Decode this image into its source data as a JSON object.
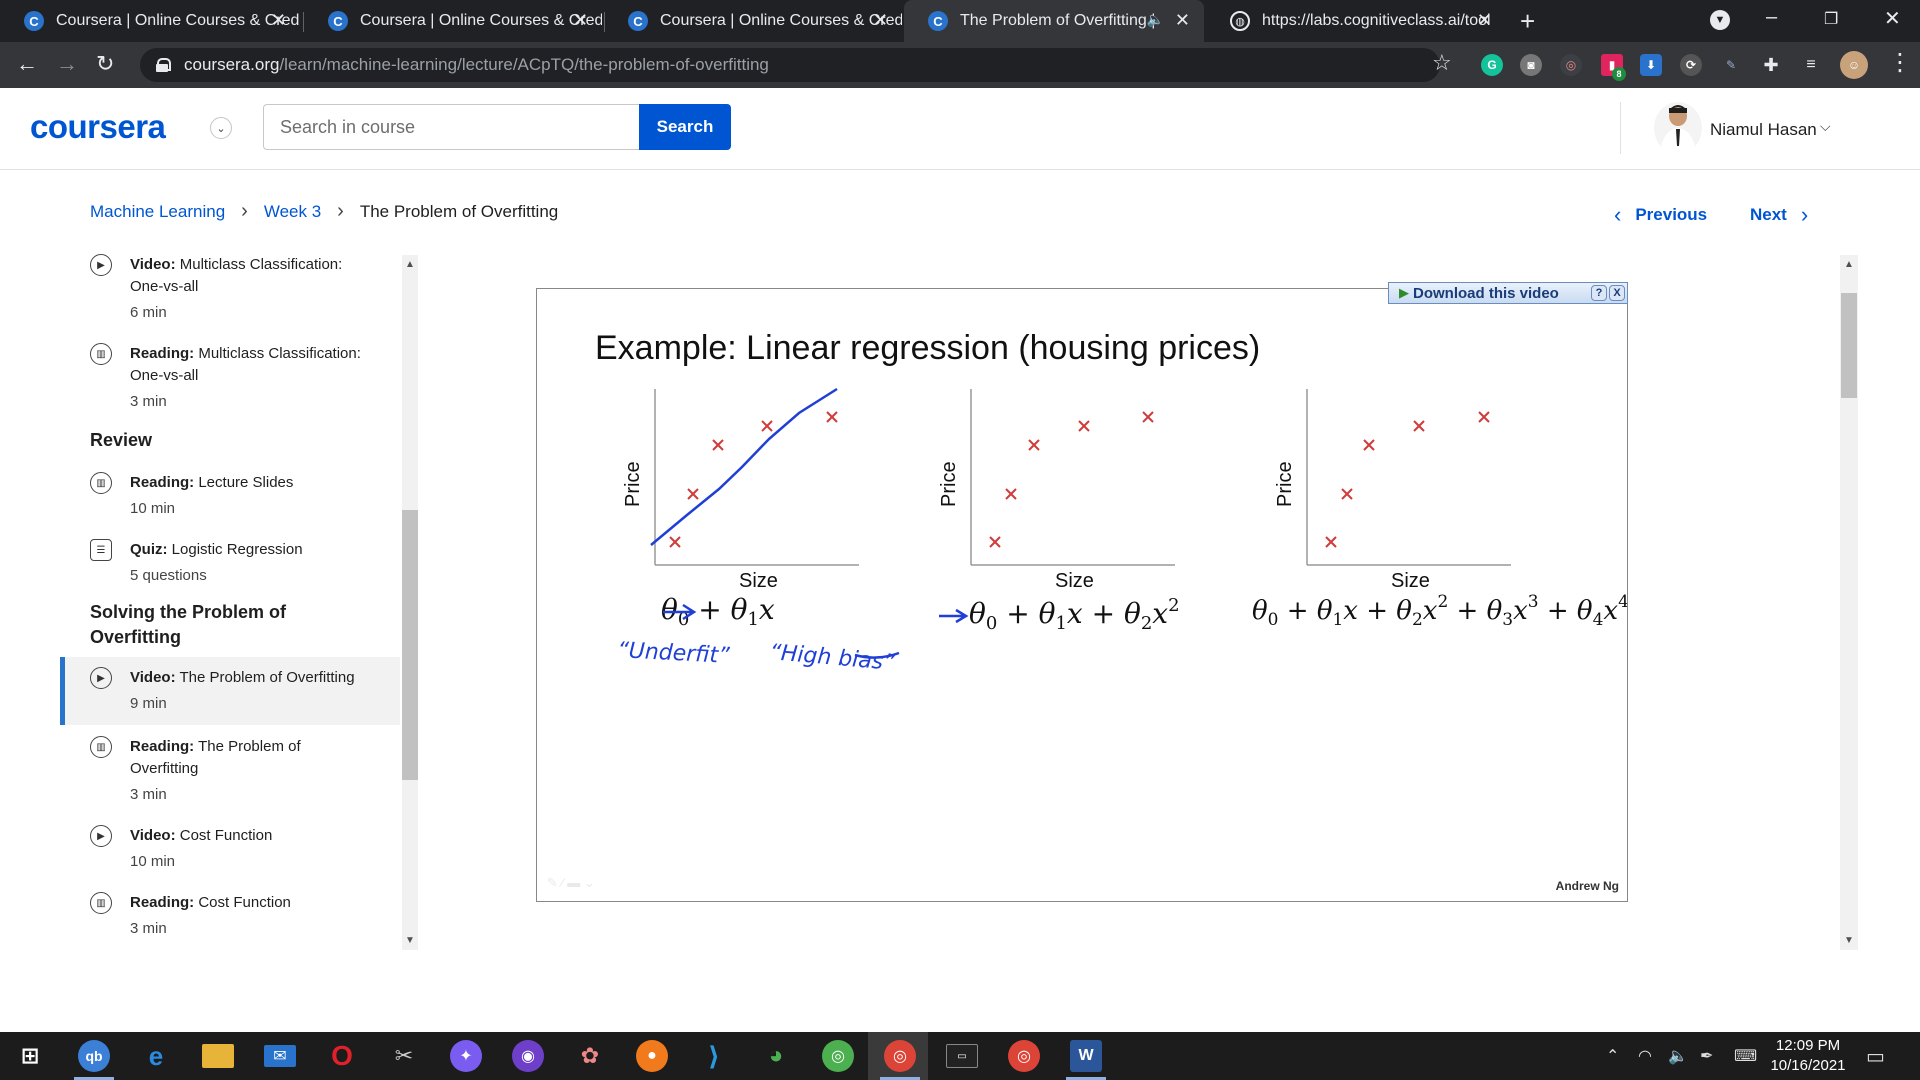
{
  "browser": {
    "tabs": [
      {
        "title": "Coursera | Online Courses & Cred",
        "favicon": "C"
      },
      {
        "title": "Coursera | Online Courses & Cred",
        "favicon": "C"
      },
      {
        "title": "Coursera | Online Courses & Cred",
        "favicon": "C"
      },
      {
        "title": "The Problem of Overfitting |",
        "favicon": "C"
      },
      {
        "title": "https://labs.cognitiveclass.ai/tool",
        "favicon": "globe"
      }
    ],
    "url_domain": "coursera.org",
    "url_path": "/learn/machine-learning/lecture/ACpTQ/the-problem-of-overfitting",
    "extension_badge": "8"
  },
  "header": {
    "logo": "coursera",
    "search_placeholder": "Search in course",
    "search_button": "Search",
    "user_name": "Niamul Hasan"
  },
  "breadcrumb": {
    "course": "Machine Learning",
    "week": "Week 3",
    "current": "The Problem of Overfitting"
  },
  "nav": {
    "previous": "Previous",
    "next": "Next"
  },
  "sidebar": {
    "items": [
      {
        "type": "Video:",
        "title": "Multiclass Classification: One-vs-all",
        "duration": "6 min",
        "icon": "play-icon"
      },
      {
        "type": "Reading:",
        "title": "Multiclass Classification: One-vs-all",
        "duration": "3 min",
        "icon": "book-icon"
      },
      {
        "type": "Reading:",
        "title": "Lecture Slides",
        "duration": "10 min",
        "icon": "book-icon"
      },
      {
        "type": "Quiz:",
        "title": "Logistic Regression",
        "duration": "5 questions",
        "icon": "quiz-icon"
      },
      {
        "type": "Video:",
        "title": "The Problem of Overfitting",
        "duration": "9 min",
        "icon": "play-icon"
      },
      {
        "type": "Reading:",
        "title": "The Problem of Overfitting",
        "duration": "3 min",
        "icon": "book-icon"
      },
      {
        "type": "Video:",
        "title": "Cost Function",
        "duration": "10 min",
        "icon": "play-icon"
      },
      {
        "type": "Reading:",
        "title": "Cost Function",
        "duration": "3 min",
        "icon": "book-icon"
      }
    ],
    "sections": {
      "review": "Review",
      "solving": "Solving the Problem of Overfitting"
    }
  },
  "slide": {
    "download_label": "Download this video",
    "help_label": "?",
    "close_label": "X",
    "title": "Example: Linear regression (housing prices)",
    "ylabel": "Price",
    "xlabel": "Size",
    "annot_underfit": "“Underfit”",
    "annot_highbias": "“High bias”",
    "credit": "Andrew Ng",
    "accent_red": "#d23b3b",
    "ink_blue": "#1f3fd6"
  },
  "taskbar": {
    "time": "12:09 PM",
    "date": "10/16/2021"
  }
}
